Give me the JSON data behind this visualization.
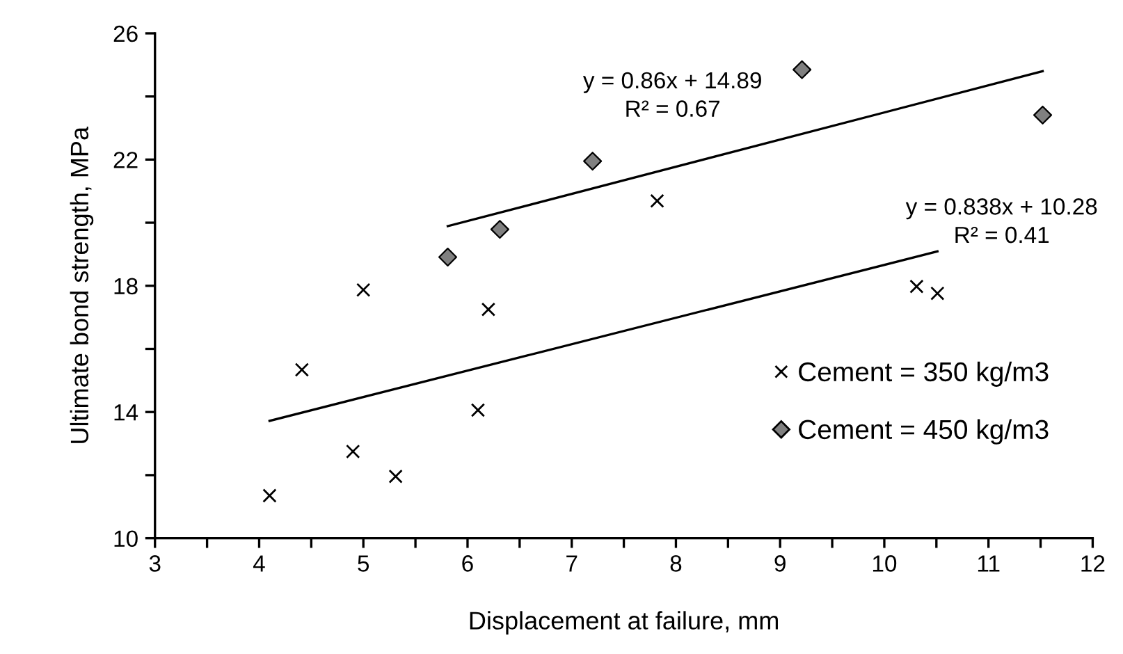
{
  "chart_data": {
    "type": "scatter",
    "xlabel": "Displacement at failure, mm",
    "ylabel": "Ultimate bond strength, MPa",
    "xlim": [
      3,
      12
    ],
    "ylim": [
      10,
      26
    ],
    "xticks": [
      3,
      {
        "value": 3.5,
        "label": null
      },
      4,
      {
        "value": 4.5,
        "label": null
      },
      5,
      {
        "value": 5.5,
        "label": null
      },
      6,
      {
        "value": 6.5,
        "label": null
      },
      7,
      {
        "value": 7.5,
        "label": null
      },
      8,
      {
        "value": 8.5,
        "label": null
      },
      9,
      {
        "value": 9.5,
        "label": null
      },
      10,
      {
        "value": 10.5,
        "label": null
      },
      11,
      {
        "value": 11.5,
        "label": null
      },
      12
    ],
    "yticks": [
      10,
      {
        "value": 12,
        "label": null
      },
      14,
      {
        "value": 16,
        "label": null
      },
      18,
      {
        "value": 20,
        "label": null
      },
      22,
      {
        "value": 24,
        "label": null
      },
      26
    ],
    "grid": false,
    "legend": "bottom right",
    "series": [
      {
        "name": "Cement = 350 kg/m3",
        "marker": "cross",
        "color": "#000000",
        "x": [
          4.1,
          4.41,
          4.9,
          5.0,
          5.31,
          6.1,
          6.2,
          7.82,
          10.31,
          10.51
        ],
        "values": [
          11.35,
          15.34,
          12.75,
          17.87,
          11.96,
          14.06,
          17.25,
          20.69,
          17.98,
          17.76
        ]
      },
      {
        "name": "Cement = 450 kg/m3",
        "marker": "diamond",
        "color": "#808080",
        "x": [
          5.81,
          6.31,
          7.2,
          9.21,
          11.52
        ],
        "values": [
          18.91,
          19.79,
          21.95,
          24.85,
          23.41
        ]
      },
      {
        "type": "line",
        "color": "#000000",
        "line_style": "solid",
        "marker": "none",
        "x": [
          4.1,
          10.51
        ],
        "values": [
          13.72,
          19.09
        ]
      },
      {
        "type": "line",
        "color": "#000000",
        "line_style": "solid",
        "marker": "none",
        "x": [
          5.81,
          11.52
        ],
        "values": [
          19.89,
          24.8
        ]
      }
    ],
    "annotations": [
      "y = 0.86x + 14.89\nR² = 0.67",
      "y = 0.838x + 10.28\nR² = 0.41"
    ]
  }
}
